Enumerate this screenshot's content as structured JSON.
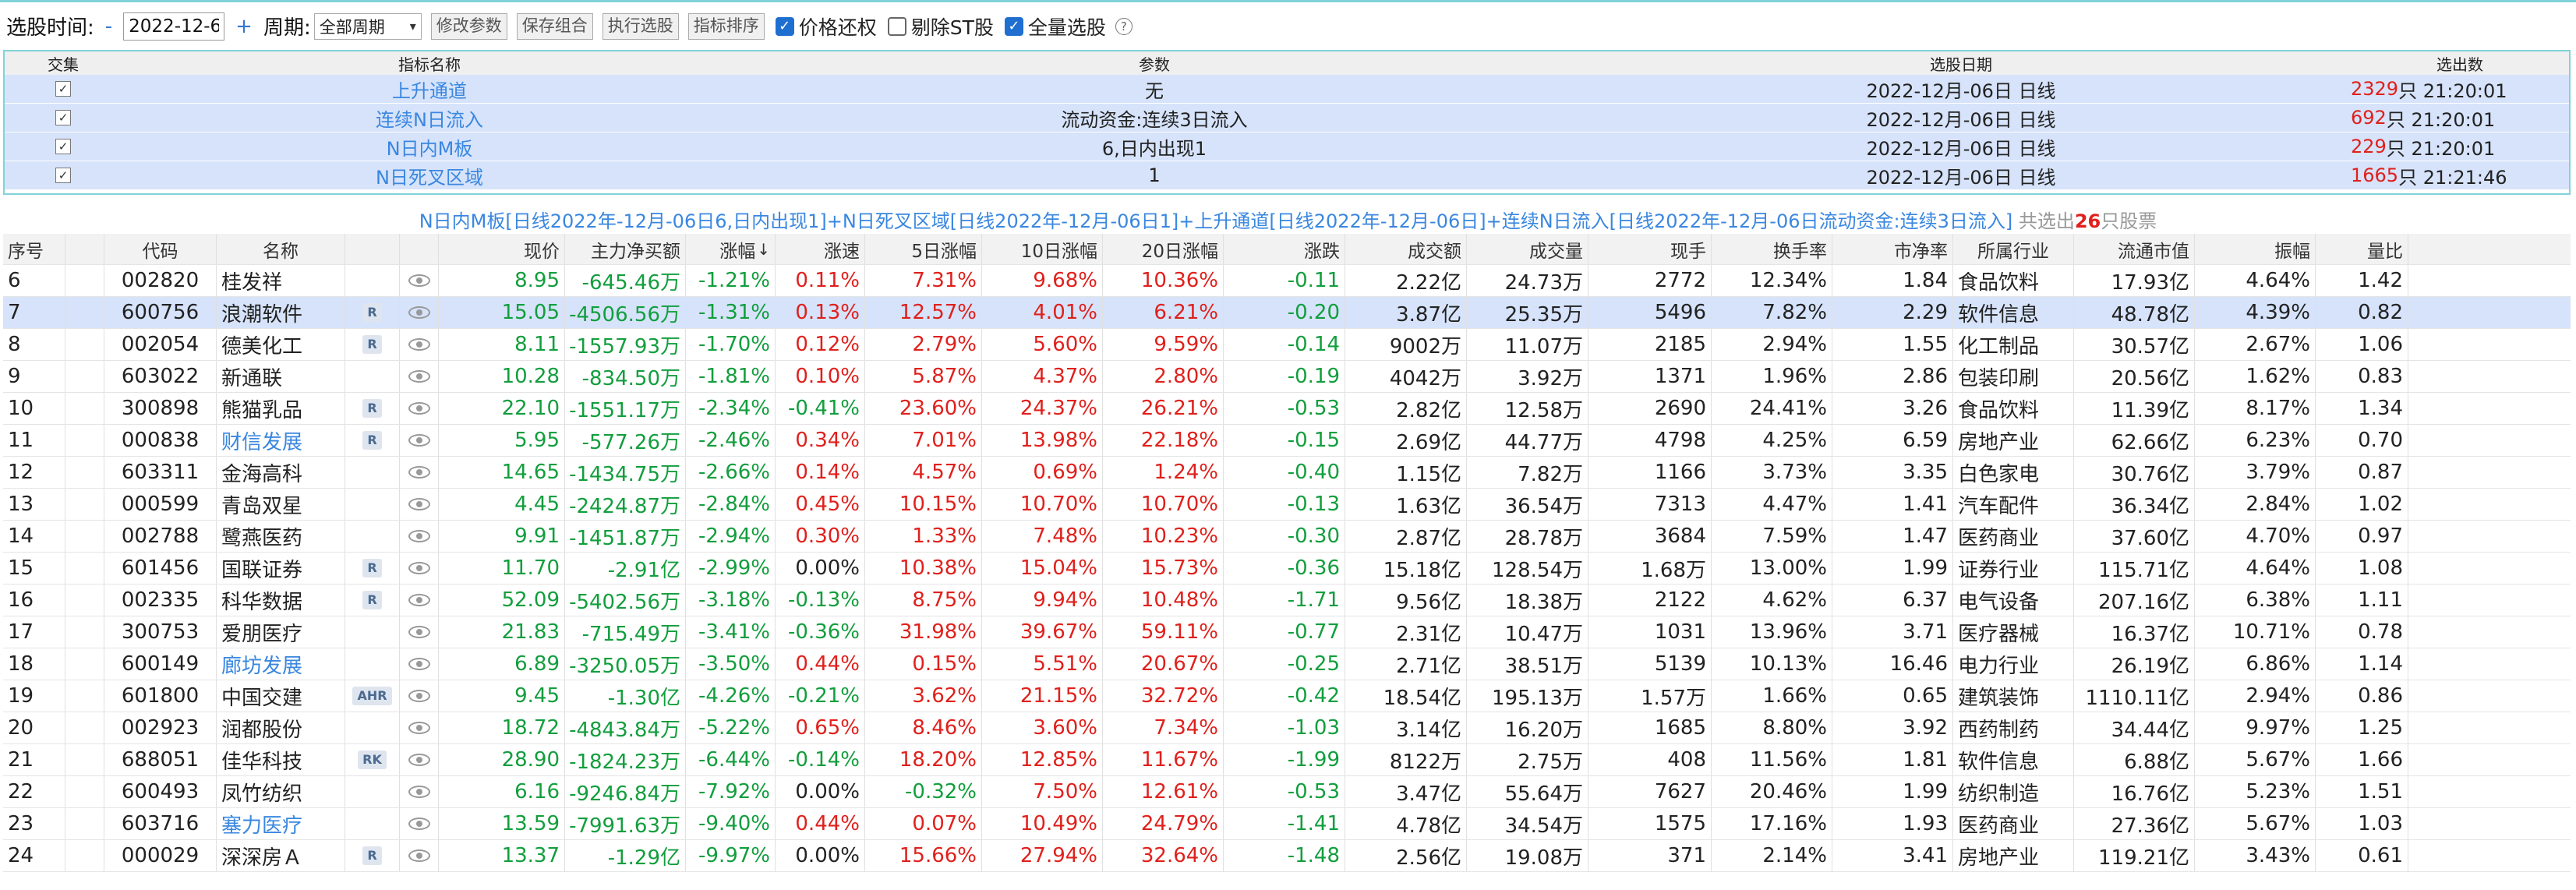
{
  "toolbar": {
    "time_label": "选股时间:",
    "minus": "-",
    "date_value": "2022-12-6",
    "plus": "+",
    "period_label": "周期:",
    "period_value": "全部周期",
    "btn_modify": "修改参数",
    "btn_save": "保存组合",
    "btn_execute": "执行选股",
    "btn_sort": "指标排序",
    "chk_price_restore": "价格还权",
    "chk_remove_st": "剔除ST股",
    "chk_full_select": "全量选股"
  },
  "panel": {
    "headers": [
      "交集",
      "指标名称",
      "参数",
      "选股日期",
      "选出数"
    ],
    "rows": [
      {
        "name": "上升通道",
        "param": "无",
        "date": "2022-12月-06日 日线",
        "count": "2329",
        "unit": "只 21:20:01"
      },
      {
        "name": "连续N日流入",
        "param": "流动资金:连续3日流入",
        "date": "2022-12月-06日 日线",
        "count": "692",
        "unit": "只 21:20:01"
      },
      {
        "name": "N日内M板",
        "param": "6,日内出现1",
        "date": "2022-12月-06日 日线",
        "count": "229",
        "unit": "只 21:20:01"
      },
      {
        "name": "N日死叉区域",
        "param": "1",
        "date": "2022-12月-06日 日线",
        "count": "1665",
        "unit": "只 21:21:46"
      }
    ]
  },
  "summary": {
    "text": "N日内M板[日线2022年-12月-06日6,日内出现1]+N日死叉区域[日线2022年-12月-06日1]+上升通道[日线2022年-12月-06日]+连续N日流入[日线2022年-12月-06日流动资金:连续3日流入]",
    "prefix": " 共选出",
    "count": "26",
    "suffix": "只股票"
  },
  "table": {
    "headers": [
      "序号",
      "",
      "代码",
      "名称",
      "",
      "",
      "现价",
      "主力净买额",
      "涨幅",
      "涨速",
      "5日涨幅",
      "10日涨幅",
      "20日涨幅",
      "涨跌",
      "成交额",
      "成交量",
      "现手",
      "换手率",
      "市净率",
      "所属行业",
      "流通市值",
      "振幅",
      "量比"
    ],
    "sort_arrow": "↓",
    "rows": [
      {
        "no": "6",
        "code": "002820",
        "name": "桂发祥",
        "tag": "",
        "price": "8.95",
        "flow": "-645.46万",
        "chg": "-1.21%",
        "speed": "0.11%",
        "d5": "7.31%",
        "d10": "9.68%",
        "d20": "10.36%",
        "diff": "-0.11",
        "amt": "2.22亿",
        "vol": "24.73万",
        "hand": "2772",
        "turn": "12.34%",
        "pb": "1.84",
        "ind": "食品饮料",
        "mcap": "17.93亿",
        "amp": "4.64%",
        "vr": "1.42",
        "link": false,
        "sel": false
      },
      {
        "no": "7",
        "code": "600756",
        "name": "浪潮软件",
        "tag": "R",
        "price": "15.05",
        "flow": "-4506.56万",
        "chg": "-1.31%",
        "speed": "0.13%",
        "d5": "12.57%",
        "d10": "4.01%",
        "d20": "6.21%",
        "diff": "-0.20",
        "amt": "3.87亿",
        "vol": "25.35万",
        "hand": "5496",
        "turn": "7.82%",
        "pb": "2.29",
        "ind": "软件信息",
        "mcap": "48.78亿",
        "amp": "4.39%",
        "vr": "0.82",
        "link": false,
        "sel": true
      },
      {
        "no": "8",
        "code": "002054",
        "name": "德美化工",
        "tag": "R",
        "price": "8.11",
        "flow": "-1557.93万",
        "chg": "-1.70%",
        "speed": "0.12%",
        "d5": "2.79%",
        "d10": "5.60%",
        "d20": "9.59%",
        "diff": "-0.14",
        "amt": "9002万",
        "vol": "11.07万",
        "hand": "2185",
        "turn": "2.94%",
        "pb": "1.55",
        "ind": "化工制品",
        "mcap": "30.57亿",
        "amp": "2.67%",
        "vr": "1.06",
        "link": false,
        "sel": false
      },
      {
        "no": "9",
        "code": "603022",
        "name": "新通联",
        "tag": "",
        "price": "10.28",
        "flow": "-834.50万",
        "chg": "-1.81%",
        "speed": "0.10%",
        "d5": "5.87%",
        "d10": "4.37%",
        "d20": "2.80%",
        "diff": "-0.19",
        "amt": "4042万",
        "vol": "3.92万",
        "hand": "1371",
        "turn": "1.96%",
        "pb": "2.86",
        "ind": "包装印刷",
        "mcap": "20.56亿",
        "amp": "1.62%",
        "vr": "0.83",
        "link": false,
        "sel": false
      },
      {
        "no": "10",
        "code": "300898",
        "name": "熊猫乳品",
        "tag": "R",
        "price": "22.10",
        "flow": "-1551.17万",
        "chg": "-2.34%",
        "speed": "-0.41%",
        "d5": "23.60%",
        "d10": "24.37%",
        "d20": "26.21%",
        "diff": "-0.53",
        "amt": "2.82亿",
        "vol": "12.58万",
        "hand": "2690",
        "turn": "24.41%",
        "pb": "3.26",
        "ind": "食品饮料",
        "mcap": "11.39亿",
        "amp": "8.17%",
        "vr": "1.34",
        "link": false,
        "sel": false
      },
      {
        "no": "11",
        "code": "000838",
        "name": "财信发展",
        "tag": "R",
        "price": "5.95",
        "flow": "-577.26万",
        "chg": "-2.46%",
        "speed": "0.34%",
        "d5": "7.01%",
        "d10": "13.98%",
        "d20": "22.18%",
        "diff": "-0.15",
        "amt": "2.69亿",
        "vol": "44.77万",
        "hand": "4798",
        "turn": "4.25%",
        "pb": "6.59",
        "ind": "房地产业",
        "mcap": "62.66亿",
        "amp": "6.23%",
        "vr": "0.70",
        "link": true,
        "sel": false
      },
      {
        "no": "12",
        "code": "603311",
        "name": "金海高科",
        "tag": "",
        "price": "14.65",
        "flow": "-1434.75万",
        "chg": "-2.66%",
        "speed": "0.14%",
        "d5": "4.57%",
        "d10": "0.69%",
        "d20": "1.24%",
        "diff": "-0.40",
        "amt": "1.15亿",
        "vol": "7.82万",
        "hand": "1166",
        "turn": "3.73%",
        "pb": "3.35",
        "ind": "白色家电",
        "mcap": "30.76亿",
        "amp": "3.79%",
        "vr": "0.87",
        "link": false,
        "sel": false
      },
      {
        "no": "13",
        "code": "000599",
        "name": "青岛双星",
        "tag": "",
        "price": "4.45",
        "flow": "-2424.87万",
        "chg": "-2.84%",
        "speed": "0.45%",
        "d5": "10.15%",
        "d10": "10.70%",
        "d20": "10.70%",
        "diff": "-0.13",
        "amt": "1.63亿",
        "vol": "36.54万",
        "hand": "7313",
        "turn": "4.47%",
        "pb": "1.41",
        "ind": "汽车配件",
        "mcap": "36.34亿",
        "amp": "2.84%",
        "vr": "1.02",
        "link": false,
        "sel": false
      },
      {
        "no": "14",
        "code": "002788",
        "name": "鹭燕医药",
        "tag": "",
        "price": "9.91",
        "flow": "-1451.87万",
        "chg": "-2.94%",
        "speed": "0.30%",
        "d5": "1.33%",
        "d10": "7.48%",
        "d20": "10.23%",
        "diff": "-0.30",
        "amt": "2.87亿",
        "vol": "28.78万",
        "hand": "3684",
        "turn": "7.59%",
        "pb": "1.47",
        "ind": "医药商业",
        "mcap": "37.60亿",
        "amp": "4.70%",
        "vr": "0.97",
        "link": false,
        "sel": false
      },
      {
        "no": "15",
        "code": "601456",
        "name": "国联证券",
        "tag": "R",
        "price": "11.70",
        "flow": "-2.91亿",
        "chg": "-2.99%",
        "speed": "0.00%",
        "d5": "10.38%",
        "d10": "15.04%",
        "d20": "15.73%",
        "diff": "-0.36",
        "amt": "15.18亿",
        "vol": "128.54万",
        "hand": "1.68万",
        "turn": "13.00%",
        "pb": "1.99",
        "ind": "证券行业",
        "mcap": "115.71亿",
        "amp": "4.64%",
        "vr": "1.08",
        "link": false,
        "sel": false
      },
      {
        "no": "16",
        "code": "002335",
        "name": "科华数据",
        "tag": "R",
        "price": "52.09",
        "flow": "-5402.56万",
        "chg": "-3.18%",
        "speed": "-0.13%",
        "d5": "8.75%",
        "d10": "9.94%",
        "d20": "10.48%",
        "diff": "-1.71",
        "amt": "9.56亿",
        "vol": "18.38万",
        "hand": "2122",
        "turn": "4.62%",
        "pb": "6.37",
        "ind": "电气设备",
        "mcap": "207.16亿",
        "amp": "6.38%",
        "vr": "1.11",
        "link": false,
        "sel": false
      },
      {
        "no": "17",
        "code": "300753",
        "name": "爱朋医疗",
        "tag": "",
        "price": "21.83",
        "flow": "-715.49万",
        "chg": "-3.41%",
        "speed": "-0.36%",
        "d5": "31.98%",
        "d10": "39.67%",
        "d20": "59.11%",
        "diff": "-0.77",
        "amt": "2.31亿",
        "vol": "10.47万",
        "hand": "1031",
        "turn": "13.96%",
        "pb": "3.71",
        "ind": "医疗器械",
        "mcap": "16.37亿",
        "amp": "10.71%",
        "vr": "0.78",
        "link": false,
        "sel": false
      },
      {
        "no": "18",
        "code": "600149",
        "name": "廊坊发展",
        "tag": "",
        "price": "6.89",
        "flow": "-3250.05万",
        "chg": "-3.50%",
        "speed": "0.44%",
        "d5": "0.15%",
        "d10": "5.51%",
        "d20": "20.67%",
        "diff": "-0.25",
        "amt": "2.71亿",
        "vol": "38.51万",
        "hand": "5139",
        "turn": "10.13%",
        "pb": "16.46",
        "ind": "电力行业",
        "mcap": "26.19亿",
        "amp": "6.86%",
        "vr": "1.14",
        "link": true,
        "sel": false
      },
      {
        "no": "19",
        "code": "601800",
        "name": "中国交建",
        "tag": "AHR",
        "price": "9.45",
        "flow": "-1.30亿",
        "chg": "-4.26%",
        "speed": "-0.21%",
        "d5": "3.62%",
        "d10": "21.15%",
        "d20": "32.72%",
        "diff": "-0.42",
        "amt": "18.54亿",
        "vol": "195.13万",
        "hand": "1.57万",
        "turn": "1.66%",
        "pb": "0.65",
        "ind": "建筑装饰",
        "mcap": "1110.11亿",
        "amp": "2.94%",
        "vr": "0.86",
        "link": false,
        "sel": false
      },
      {
        "no": "20",
        "code": "002923",
        "name": "润都股份",
        "tag": "",
        "price": "18.72",
        "flow": "-4843.84万",
        "chg": "-5.22%",
        "speed": "0.65%",
        "d5": "8.46%",
        "d10": "3.60%",
        "d20": "7.34%",
        "diff": "-1.03",
        "amt": "3.14亿",
        "vol": "16.20万",
        "hand": "1685",
        "turn": "8.80%",
        "pb": "3.92",
        "ind": "西药制药",
        "mcap": "34.44亿",
        "amp": "9.97%",
        "vr": "1.25",
        "link": false,
        "sel": false
      },
      {
        "no": "21",
        "code": "688051",
        "name": "佳华科技",
        "tag": "RK",
        "price": "28.90",
        "flow": "-1824.23万",
        "chg": "-6.44%",
        "speed": "-0.14%",
        "d5": "18.20%",
        "d10": "12.85%",
        "d20": "11.67%",
        "diff": "-1.99",
        "amt": "8122万",
        "vol": "2.75万",
        "hand": "408",
        "turn": "11.56%",
        "pb": "1.81",
        "ind": "软件信息",
        "mcap": "6.88亿",
        "amp": "5.67%",
        "vr": "1.66",
        "link": false,
        "sel": false
      },
      {
        "no": "22",
        "code": "600493",
        "name": "凤竹纺织",
        "tag": "",
        "price": "6.16",
        "flow": "-9246.84万",
        "chg": "-7.92%",
        "speed": "0.00%",
        "d5": "-0.32%",
        "d10": "7.50%",
        "d20": "12.61%",
        "diff": "-0.53",
        "amt": "3.47亿",
        "vol": "55.64万",
        "hand": "7627",
        "turn": "20.46%",
        "pb": "1.99",
        "ind": "纺织制造",
        "mcap": "16.76亿",
        "amp": "5.23%",
        "vr": "1.51",
        "link": false,
        "sel": false
      },
      {
        "no": "23",
        "code": "603716",
        "name": "塞力医疗",
        "tag": "",
        "price": "13.59",
        "flow": "-7991.63万",
        "chg": "-9.40%",
        "speed": "0.44%",
        "d5": "0.07%",
        "d10": "10.49%",
        "d20": "24.79%",
        "diff": "-1.41",
        "amt": "4.78亿",
        "vol": "34.54万",
        "hand": "1575",
        "turn": "17.16%",
        "pb": "1.93",
        "ind": "医药商业",
        "mcap": "27.36亿",
        "amp": "5.67%",
        "vr": "1.03",
        "link": true,
        "sel": false
      },
      {
        "no": "24",
        "code": "000029",
        "name": "深深房Ａ",
        "tag": "R",
        "price": "13.37",
        "flow": "-1.29亿",
        "chg": "-9.97%",
        "speed": "0.00%",
        "d5": "15.66%",
        "d10": "27.94%",
        "d20": "32.64%",
        "diff": "-1.48",
        "amt": "2.56亿",
        "vol": "19.08万",
        "hand": "371",
        "turn": "2.14%",
        "pb": "3.41",
        "ind": "房地产业",
        "mcap": "119.21亿",
        "amp": "3.43%",
        "vr": "0.61",
        "link": false,
        "sel": false
      }
    ]
  },
  "colors": {
    "up": "#e0201c",
    "down": "#129e3d",
    "link": "#3a87e0",
    "selected_row": "#d6e3fa"
  }
}
